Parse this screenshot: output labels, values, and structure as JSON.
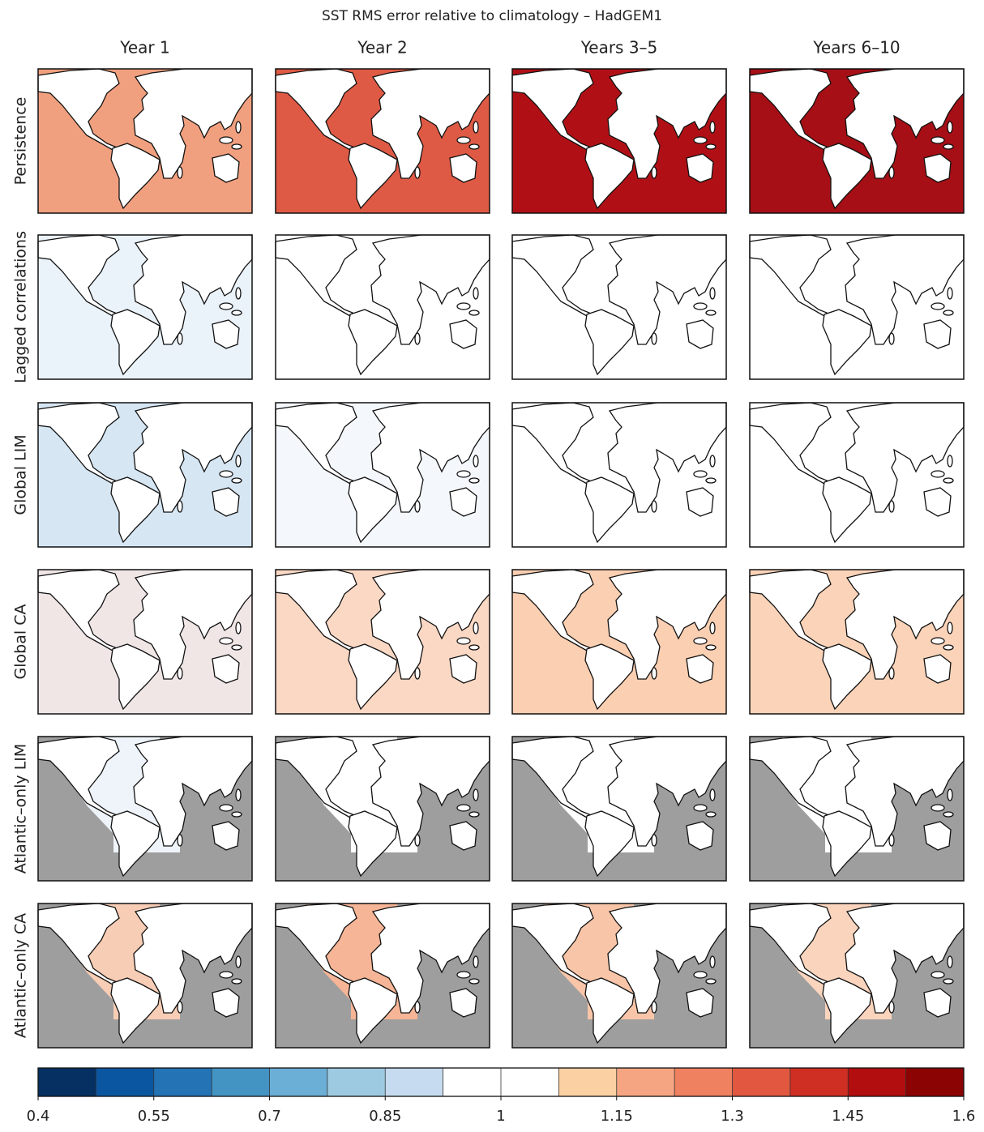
{
  "title": "SST RMS error relative to climatology – HadGEM1",
  "columns": [
    "Year 1",
    "Year 2",
    "Years 3–5",
    "Years 6–10"
  ],
  "rows": [
    "Persistence",
    "Lagged correlations",
    "Global LIM",
    "Global CA",
    "Atlantic–only LIM",
    "Atlantic–only CA"
  ],
  "panels": [
    [
      {
        "fill": "#f1a07f"
      },
      {
        "fill": "#df5a45"
      },
      {
        "fill": "#b01015"
      },
      {
        "fill": "#a50f15"
      }
    ],
    [
      {
        "fill": "#eaf2fa"
      },
      {
        "fill": "#ffffff"
      },
      {
        "fill": "#ffffff"
      },
      {
        "fill": "#ffffff"
      }
    ],
    [
      {
        "fill": "#d6e6f3"
      },
      {
        "fill": "#f4f8fc"
      },
      {
        "fill": "#ffffff"
      },
      {
        "fill": "#ffffff"
      }
    ],
    [
      {
        "fill": "#f0e6e6"
      },
      {
        "fill": "#fbd8c4"
      },
      {
        "fill": "#fbcfb2"
      },
      {
        "fill": "#fbd3b8"
      }
    ],
    [
      {
        "fill": "#9e9e9e",
        "mask": "#eef4fa"
      },
      {
        "fill": "#9e9e9e",
        "mask": "#ffffff"
      },
      {
        "fill": "#9e9e9e",
        "mask": "#ffffff"
      },
      {
        "fill": "#9e9e9e",
        "mask": "#ffffff"
      }
    ],
    [
      {
        "fill": "#9e9e9e",
        "mask": "#f8cdb5"
      },
      {
        "fill": "#9e9e9e",
        "mask": "#f6b596"
      },
      {
        "fill": "#9e9e9e",
        "mask": "#f8c5a8"
      },
      {
        "fill": "#9e9e9e",
        "mask": "#fad4bd"
      }
    ]
  ],
  "colorbar": {
    "lim": [
      0.4,
      1.6
    ],
    "ticks": [
      0.4,
      0.55,
      0.7,
      0.85,
      1,
      1.15,
      1.3,
      1.45,
      1.6
    ],
    "colors": [
      "#053061",
      "#0b56a0",
      "#2373b5",
      "#4393c3",
      "#6baed6",
      "#9ecae1",
      "#c6dbef",
      "#ffffff",
      "#ffffff",
      "#fbd0a3",
      "#f6a582",
      "#ef8060",
      "#e25740",
      "#cf2e22",
      "#b20d0f",
      "#8b0303"
    ]
  }
}
